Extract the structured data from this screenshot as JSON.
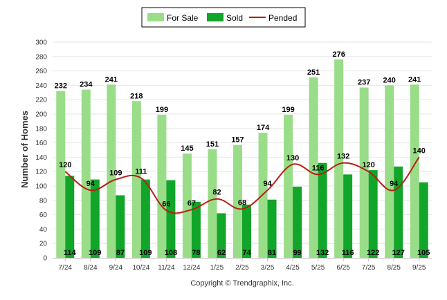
{
  "chart_data": {
    "type": "bar",
    "categories": [
      "7/24",
      "8/24",
      "9/24",
      "10/24",
      "11/24",
      "12/24",
      "1/25",
      "2/25",
      "3/25",
      "4/25",
      "5/25",
      "6/25",
      "7/25",
      "8/25",
      "9/25"
    ],
    "series": [
      {
        "name": "For Sale",
        "kind": "bar",
        "color": "#99dd88",
        "values": [
          232,
          234,
          241,
          218,
          199,
          145,
          151,
          157,
          174,
          199,
          251,
          276,
          237,
          240,
          241
        ]
      },
      {
        "name": "Sold",
        "kind": "bar",
        "color": "#11a52a",
        "values": [
          114,
          109,
          87,
          109,
          108,
          78,
          62,
          74,
          81,
          99,
          132,
          116,
          122,
          127,
          105
        ]
      },
      {
        "name": "Pended",
        "kind": "line",
        "color": "#b81e14",
        "values": [
          120,
          94,
          109,
          111,
          66,
          67,
          82,
          68,
          94,
          130,
          116,
          132,
          120,
          94,
          140
        ]
      }
    ],
    "ylabel": "Number of Homes",
    "xlabel": "",
    "ylim": [
      0,
      300
    ],
    "yticks": [
      0,
      20,
      40,
      60,
      80,
      100,
      120,
      140,
      160,
      180,
      200,
      220,
      240,
      260,
      280,
      300
    ],
    "grid": true,
    "legend": "top-center"
  },
  "copyright": "Copyright © Trendgraphix, Inc."
}
